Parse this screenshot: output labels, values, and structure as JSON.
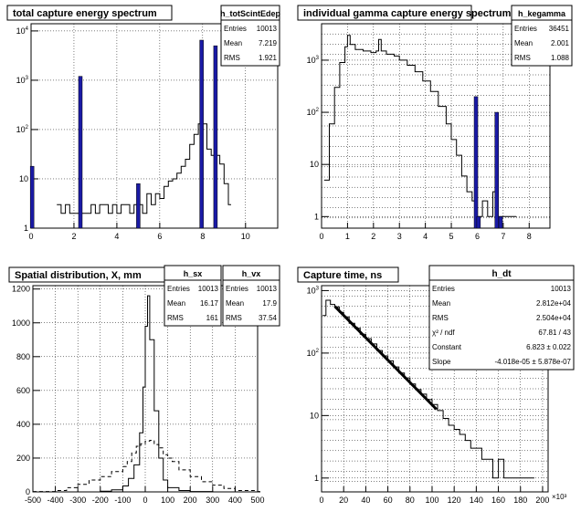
{
  "chart_data": [
    {
      "type": "bar",
      "title": "total capture energy spectrum",
      "stats": {
        "name": "h_totScintEdep",
        "rows": [
          [
            "Entries",
            "10013"
          ],
          [
            "Mean",
            "7.219"
          ],
          [
            "RMS",
            "1.921"
          ]
        ]
      },
      "xlim": [
        0,
        11.5
      ],
      "ylog": true,
      "ylim": [
        1,
        14000
      ],
      "xticks": [
        "0",
        "2",
        "4",
        "6",
        "8",
        "10"
      ],
      "yticks": [
        "1",
        "10",
        "10^2",
        "10^3",
        "10^4"
      ],
      "series": [
        {
          "style": "line",
          "points": [
            [
              1.2,
              3
            ],
            [
              1.4,
              2
            ],
            [
              1.6,
              3
            ],
            [
              1.8,
              2
            ],
            [
              2.6,
              2
            ],
            [
              2.8,
              3
            ],
            [
              3.0,
              2
            ],
            [
              3.2,
              3
            ],
            [
              3.6,
              2
            ],
            [
              3.8,
              3
            ],
            [
              4.0,
              2
            ],
            [
              4.2,
              3
            ],
            [
              4.6,
              2
            ],
            [
              4.8,
              3
            ],
            [
              5.2,
              2
            ],
            [
              5.4,
              5
            ],
            [
              5.6,
              3
            ],
            [
              5.8,
              5
            ],
            [
              6.0,
              4
            ],
            [
              6.2,
              7
            ],
            [
              6.4,
              9
            ],
            [
              6.6,
              10
            ],
            [
              6.8,
              13
            ],
            [
              7.0,
              18
            ],
            [
              7.2,
              25
            ],
            [
              7.4,
              50
            ],
            [
              7.6,
              80
            ],
            [
              7.8,
              130
            ],
            [
              8.2,
              40
            ],
            [
              8.4,
              30
            ],
            [
              8.8,
              20
            ],
            [
              9.0,
              8
            ],
            [
              9.2,
              3
            ]
          ]
        },
        {
          "style": "bar",
          "points": [
            [
              0.05,
              18
            ],
            [
              2.3,
              1200
            ],
            [
              5.0,
              8
            ],
            [
              7.95,
              6500
            ],
            [
              8.6,
              5000
            ]
          ]
        }
      ]
    },
    {
      "type": "line",
      "title": "individual gamma capture energy spectrum",
      "stats": {
        "name": "h_kegamma",
        "rows": [
          [
            "Entries",
            "36451"
          ],
          [
            "Mean",
            "2.001"
          ],
          [
            "RMS",
            "1.088"
          ]
        ]
      },
      "xlim": [
        0,
        8.8
      ],
      "ylog": true,
      "ylim": [
        0.6,
        5000
      ],
      "xticks": [
        "0",
        "1",
        "2",
        "3",
        "4",
        "5",
        "6",
        "7",
        "8"
      ],
      "yticks": [
        "1",
        "10",
        "10^2",
        "10^3"
      ],
      "series": [
        {
          "style": "line",
          "points": [
            [
              0.1,
              5
            ],
            [
              0.3,
              60
            ],
            [
              0.5,
              300
            ],
            [
              0.7,
              900
            ],
            [
              0.9,
              1800
            ],
            [
              1.0,
              3000
            ],
            [
              1.1,
              2000
            ],
            [
              1.3,
              1600
            ],
            [
              1.6,
              1500
            ],
            [
              1.9,
              1400
            ],
            [
              2.1,
              1500
            ],
            [
              2.2,
              2500
            ],
            [
              2.3,
              1500
            ],
            [
              2.5,
              1300
            ],
            [
              2.8,
              1200
            ],
            [
              3.0,
              1000
            ],
            [
              3.3,
              800
            ],
            [
              3.6,
              600
            ],
            [
              3.9,
              400
            ],
            [
              4.2,
              250
            ],
            [
              4.5,
              130
            ],
            [
              4.8,
              60
            ],
            [
              5.0,
              30
            ],
            [
              5.2,
              15
            ],
            [
              5.4,
              6
            ],
            [
              5.6,
              3
            ],
            [
              5.8,
              2
            ],
            [
              6.0,
              1
            ],
            [
              6.2,
              2
            ],
            [
              6.4,
              1
            ],
            [
              6.6,
              3
            ],
            [
              6.8,
              1
            ],
            [
              7.0,
              1
            ],
            [
              7.4,
              1
            ]
          ]
        },
        {
          "style": "bar",
          "points": [
            [
              5.95,
              200
            ],
            [
              6.75,
              100
            ],
            [
              6.05,
              1
            ],
            [
              6.9,
              1
            ]
          ]
        }
      ]
    },
    {
      "type": "line",
      "title": "Spatial distribution, X, mm",
      "stats": [
        {
          "name": "h_sx",
          "rows": [
            [
              "Entries",
              "10013"
            ],
            [
              "Mean",
              "16.17"
            ],
            [
              "RMS",
              "161"
            ]
          ]
        },
        {
          "name": "h_vx",
          "rows": [
            [
              "Entries",
              "10013"
            ],
            [
              "Mean",
              "17.9"
            ],
            [
              "RMS",
              "37.54"
            ]
          ]
        }
      ],
      "xlim": [
        -500,
        500
      ],
      "ylog": false,
      "ylim": [
        0,
        1220
      ],
      "xticks": [
        "-500",
        "-400",
        "-300",
        "-200",
        "-100",
        "0",
        "100",
        "200",
        "300",
        "400",
        "500"
      ],
      "yticks": [
        "0",
        "200",
        "400",
        "600",
        "800",
        "1000",
        "1200"
      ],
      "series": [
        {
          "name": "h_vx",
          "style": "line",
          "points": [
            [
              -500,
              0
            ],
            [
              -300,
              0
            ],
            [
              -200,
              4
            ],
            [
              -150,
              12
            ],
            [
              -100,
              35
            ],
            [
              -75,
              80
            ],
            [
              -50,
              160
            ],
            [
              -25,
              350
            ],
            [
              -10,
              620
            ],
            [
              0,
              980
            ],
            [
              10,
              1160
            ],
            [
              20,
              900
            ],
            [
              40,
              480
            ],
            [
              60,
              200
            ],
            [
              80,
              70
            ],
            [
              100,
              25
            ],
            [
              150,
              8
            ],
            [
              200,
              2
            ],
            [
              300,
              0
            ],
            [
              500,
              0
            ]
          ]
        },
        {
          "name": "h_sx",
          "style": "dashed",
          "points": [
            [
              -500,
              2
            ],
            [
              -400,
              8
            ],
            [
              -350,
              25
            ],
            [
              -300,
              45
            ],
            [
              -250,
              70
            ],
            [
              -200,
              90
            ],
            [
              -150,
              120
            ],
            [
              -100,
              150
            ],
            [
              -80,
              180
            ],
            [
              -60,
              230
            ],
            [
              -40,
              270
            ],
            [
              -20,
              285
            ],
            [
              0,
              300
            ],
            [
              20,
              305
            ],
            [
              40,
              280
            ],
            [
              60,
              260
            ],
            [
              80,
              220
            ],
            [
              100,
              200
            ],
            [
              120,
              180
            ],
            [
              150,
              130
            ],
            [
              200,
              90
            ],
            [
              250,
              60
            ],
            [
              300,
              40
            ],
            [
              350,
              20
            ],
            [
              400,
              8
            ],
            [
              500,
              2
            ]
          ]
        }
      ]
    },
    {
      "type": "line",
      "title": "Capture time, ns",
      "stats": {
        "name": "h_dt",
        "rows": [
          [
            "Entries",
            "10013"
          ],
          [
            "Mean",
            "2.812e+04"
          ],
          [
            "RMS",
            "2.504e+04"
          ],
          [
            "χ² / ndf",
            "67.81 / 43"
          ],
          [
            "Constant",
            "6.823 ± 0.022"
          ],
          [
            "Slope",
            "-4.018e-05 ± 5.878e-07"
          ]
        ]
      },
      "xlim": [
        0,
        205
      ],
      "ylog": true,
      "ylim": [
        0.6,
        1200
      ],
      "xticks": [
        "0",
        "20",
        "40",
        "60",
        "80",
        "100",
        "120",
        "140",
        "160",
        "180",
        "200"
      ],
      "xexp": "×10³",
      "yticks": [
        "1",
        "10",
        "10^2",
        "10^3"
      ],
      "series": [
        {
          "style": "line",
          "points": [
            [
              1,
              400
            ],
            [
              4,
              700
            ],
            [
              8,
              600
            ],
            [
              12,
              550
            ],
            [
              16,
              450
            ],
            [
              20,
              380
            ],
            [
              25,
              300
            ],
            [
              30,
              250
            ],
            [
              35,
              200
            ],
            [
              40,
              170
            ],
            [
              45,
              140
            ],
            [
              50,
              110
            ],
            [
              55,
              90
            ],
            [
              60,
              75
            ],
            [
              65,
              60
            ],
            [
              70,
              48
            ],
            [
              75,
              40
            ],
            [
              80,
              32
            ],
            [
              85,
              26
            ],
            [
              90,
              22
            ],
            [
              95,
              18
            ],
            [
              100,
              15
            ],
            [
              105,
              12
            ],
            [
              110,
              9
            ],
            [
              115,
              7
            ],
            [
              120,
              6
            ],
            [
              125,
              5
            ],
            [
              130,
              4
            ],
            [
              135,
              3
            ],
            [
              140,
              3
            ],
            [
              145,
              2
            ],
            [
              150,
              2
            ],
            [
              155,
              1
            ],
            [
              160,
              2
            ],
            [
              165,
              1
            ],
            [
              170,
              1
            ],
            [
              180,
              1
            ],
            [
              190,
              1
            ]
          ]
        },
        {
          "style": "fit",
          "points": [
            [
              12,
              560
            ],
            [
              104,
              12.6
            ]
          ]
        }
      ]
    }
  ]
}
